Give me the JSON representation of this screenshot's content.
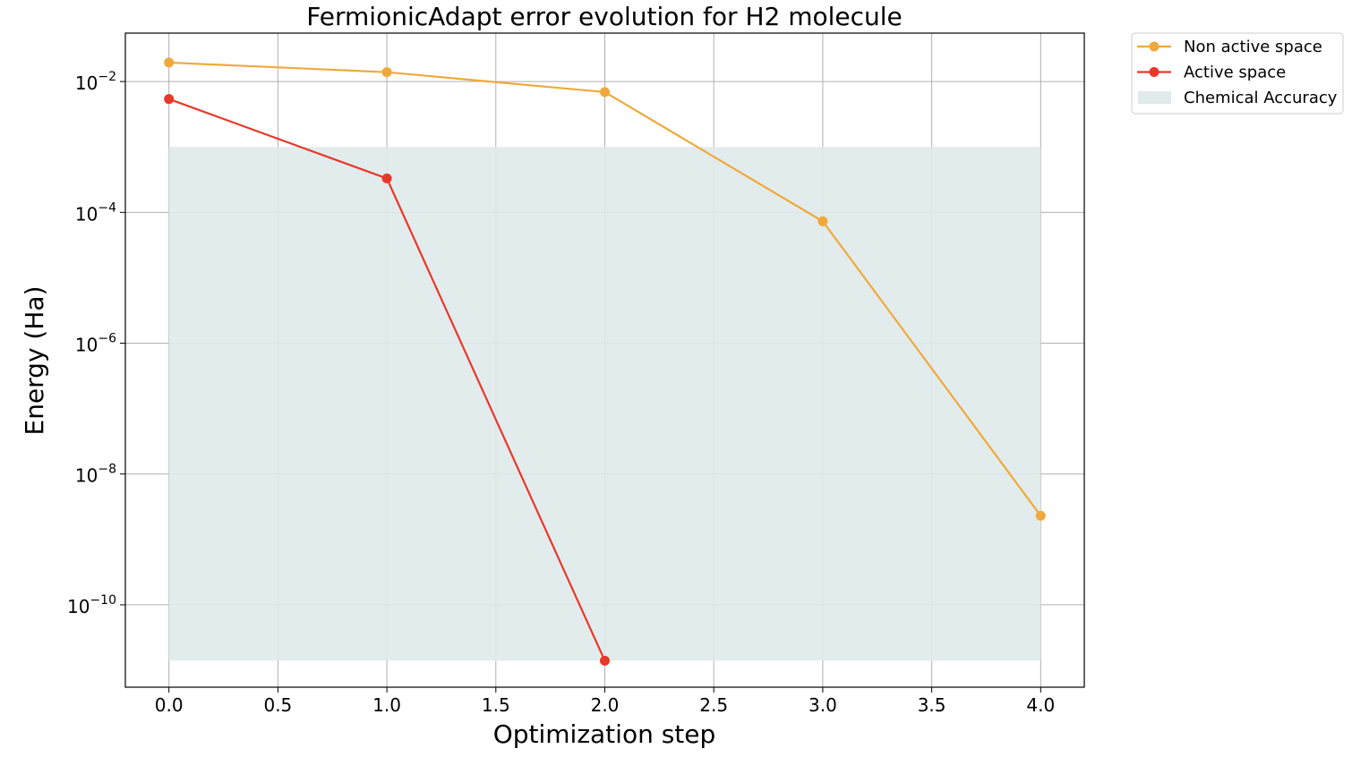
{
  "chart_data": {
    "type": "line",
    "title": "FermionicAdapt error evolution for H2 molecule",
    "xlabel": "Optimization step",
    "ylabel": "Energy (Ha)",
    "xscale": "linear",
    "yscale": "log",
    "xlim": [
      -0.2,
      4.2
    ],
    "ylim": [
      5.5e-12,
      0.055
    ],
    "x_ticks": [
      0.0,
      0.5,
      1.0,
      1.5,
      2.0,
      2.5,
      3.0,
      3.5,
      4.0
    ],
    "x_tick_labels": [
      "0.0",
      "0.5",
      "1.0",
      "1.5",
      "2.0",
      "2.5",
      "3.0",
      "3.5",
      "4.0"
    ],
    "y_ticks": [
      {
        "value": 1e-10,
        "base": "10",
        "exp": "−10"
      },
      {
        "value": 1e-08,
        "base": "10",
        "exp": "−8"
      },
      {
        "value": 1e-06,
        "base": "10",
        "exp": "−6"
      },
      {
        "value": 0.0001,
        "base": "10",
        "exp": "−4"
      },
      {
        "value": 0.01,
        "base": "10",
        "exp": "−2"
      }
    ],
    "grid": true,
    "legend_position": "outside-top-right",
    "series": [
      {
        "name": "Non active space",
        "color": "#EFA93A",
        "marker": "circle",
        "x": [
          0,
          1,
          2,
          3,
          4
        ],
        "y": [
          0.0195,
          0.0139,
          0.0069,
          7.3e-05,
          2.3e-09
        ]
      },
      {
        "name": "Active space",
        "color": "#E8382A",
        "marker": "circle",
        "x": [
          0,
          1,
          2
        ],
        "y": [
          0.0054,
          0.00033,
          1.4e-11
        ]
      }
    ],
    "bands": [
      {
        "name": "Chemical Accuracy",
        "color": "#E0EAEA",
        "x": [
          0,
          4
        ],
        "y": [
          1.4e-11,
          0.001
        ]
      }
    ]
  }
}
